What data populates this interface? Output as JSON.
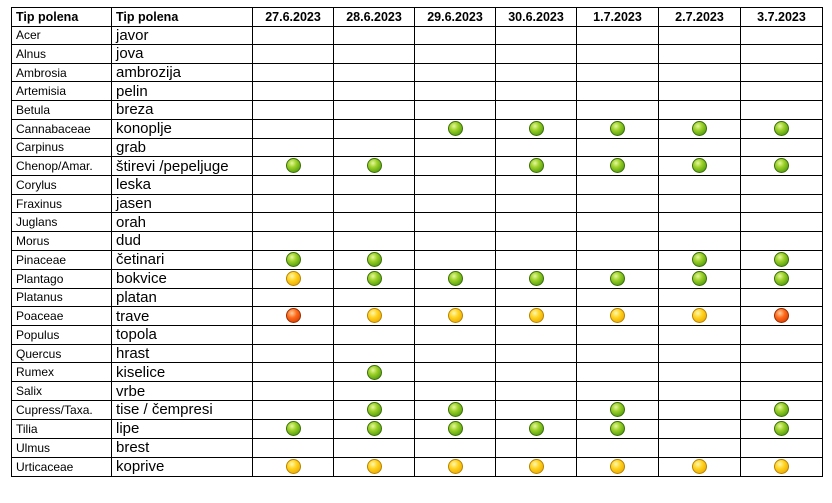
{
  "headers": [
    "Tip polena",
    "Tip polena",
    "27.6.2023",
    "28.6.2023",
    "29.6.2023",
    "30.6.2023",
    "1.7.2023",
    "2.7.2023",
    "3.7.2023"
  ],
  "level_colors": {
    "green": "#6cb51a",
    "yellow": "#ffcc00",
    "orange": "#ff5a00"
  },
  "rows": [
    {
      "latin": "Acer",
      "local": "javor",
      "levels": [
        "",
        "",
        "",
        "",
        "",
        "",
        ""
      ]
    },
    {
      "latin": "Alnus",
      "local": "jova",
      "levels": [
        "",
        "",
        "",
        "",
        "",
        "",
        ""
      ]
    },
    {
      "latin": "Ambrosia",
      "local": "ambrozija",
      "levels": [
        "",
        "",
        "",
        "",
        "",
        "",
        ""
      ]
    },
    {
      "latin": "Artemisia",
      "local": "pelin",
      "levels": [
        "",
        "",
        "",
        "",
        "",
        "",
        ""
      ]
    },
    {
      "latin": "Betula",
      "local": "breza",
      "levels": [
        "",
        "",
        "",
        "",
        "",
        "",
        ""
      ]
    },
    {
      "latin": "Cannabaceae",
      "local": "konoplje",
      "levels": [
        "",
        "",
        "green",
        "green",
        "green",
        "green",
        "green"
      ]
    },
    {
      "latin": "Carpinus",
      "local": "grab",
      "levels": [
        "",
        "",
        "",
        "",
        "",
        "",
        ""
      ]
    },
    {
      "latin": "Chenop/Amar.",
      "local": "štirevi /pepeljuge",
      "levels": [
        "green",
        "green",
        "",
        "green",
        "green",
        "green",
        "green"
      ]
    },
    {
      "latin": "Corylus",
      "local": "leska",
      "levels": [
        "",
        "",
        "",
        "",
        "",
        "",
        ""
      ]
    },
    {
      "latin": "Fraxinus",
      "local": "jasen",
      "levels": [
        "",
        "",
        "",
        "",
        "",
        "",
        ""
      ]
    },
    {
      "latin": "Juglans",
      "local": "orah",
      "levels": [
        "",
        "",
        "",
        "",
        "",
        "",
        ""
      ]
    },
    {
      "latin": "Morus",
      "local": "dud",
      "levels": [
        "",
        "",
        "",
        "",
        "",
        "",
        ""
      ]
    },
    {
      "latin": "Pinaceae",
      "local": "četinari",
      "levels": [
        "green",
        "green",
        "",
        "",
        "",
        "green",
        "green"
      ]
    },
    {
      "latin": "Plantago",
      "local": "bokvice",
      "levels": [
        "yellow",
        "green",
        "green",
        "green",
        "green",
        "green",
        "green"
      ]
    },
    {
      "latin": "Platanus",
      "local": "platan",
      "levels": [
        "",
        "",
        "",
        "",
        "",
        "",
        ""
      ]
    },
    {
      "latin": "Poaceae",
      "local": "trave",
      "levels": [
        "orange",
        "yellow",
        "yellow",
        "yellow",
        "yellow",
        "yellow",
        "orange"
      ]
    },
    {
      "latin": "Populus",
      "local": "topola",
      "levels": [
        "",
        "",
        "",
        "",
        "",
        "",
        ""
      ]
    },
    {
      "latin": "Quercus",
      "local": "hrast",
      "levels": [
        "",
        "",
        "",
        "",
        "",
        "",
        ""
      ]
    },
    {
      "latin": "Rumex",
      "local": "kiselice",
      "levels": [
        "",
        "green",
        "",
        "",
        "",
        "",
        ""
      ]
    },
    {
      "latin": "Salix",
      "local": "vrbe",
      "levels": [
        "",
        "",
        "",
        "",
        "",
        "",
        ""
      ]
    },
    {
      "latin": "Cupress/Taxa.",
      "local": "tise / čempresi",
      "levels": [
        "",
        "green",
        "green",
        "",
        "green",
        "",
        "green"
      ]
    },
    {
      "latin": "Tilia",
      "local": "lipe",
      "levels": [
        "green",
        "green",
        "green",
        "green",
        "green",
        "",
        "green"
      ]
    },
    {
      "latin": "Ulmus",
      "local": "brest",
      "levels": [
        "",
        "",
        "",
        "",
        "",
        "",
        ""
      ]
    },
    {
      "latin": "Urticaceae",
      "local": "koprive",
      "levels": [
        "yellow",
        "yellow",
        "yellow",
        "yellow",
        "yellow",
        "yellow",
        "yellow"
      ]
    }
  ]
}
